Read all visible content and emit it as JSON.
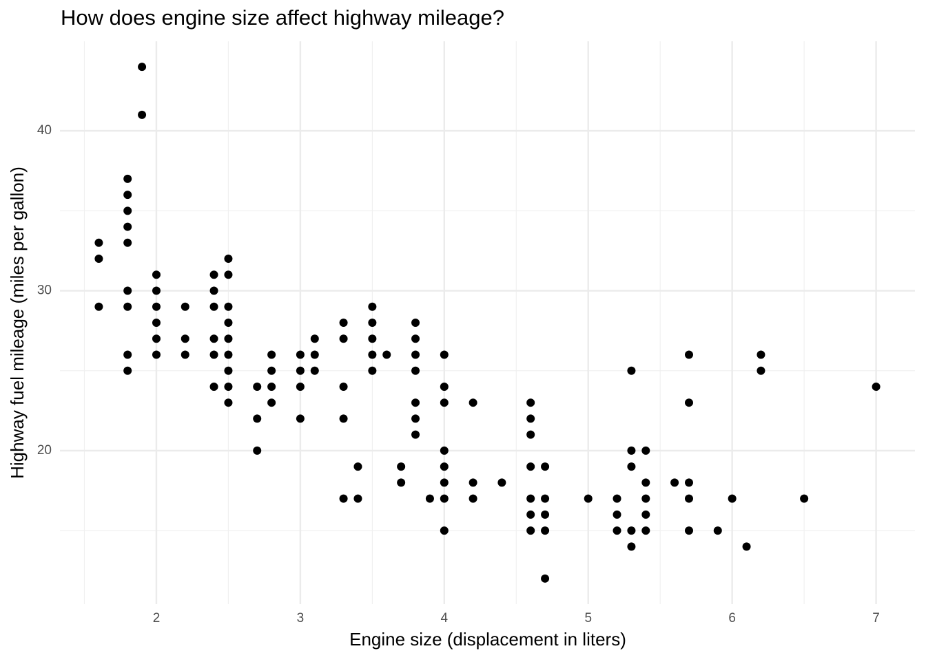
{
  "chart_data": {
    "type": "scatter",
    "title": "How does engine size affect highway mileage?",
    "x_label": "Engine size (displacement in liters)",
    "y_label": "Highway fuel mileage (miles per gallon)",
    "color": "#000000",
    "grid": true,
    "xlim": [
      1.33,
      7.27
    ],
    "ylim": [
      10.4,
      45.6
    ],
    "xticks": [
      2,
      3,
      4,
      5,
      6,
      7
    ],
    "yticks": [
      20,
      30,
      40
    ],
    "xminor": [
      1.5,
      2.5,
      3.5,
      4.5,
      5.5,
      6.5
    ],
    "yminor": [
      15,
      25,
      35
    ],
    "x": [
      1.6,
      1.6,
      1.6,
      1.8,
      1.8,
      1.8,
      1.8,
      1.8,
      1.8,
      1.8,
      1.8,
      1.8,
      1.9,
      1.9,
      2,
      2,
      2,
      2,
      2,
      2,
      2.2,
      2.2,
      2.2,
      2.4,
      2.4,
      2.4,
      2.4,
      2.4,
      2.4,
      2.5,
      2.5,
      2.5,
      2.5,
      2.5,
      2.5,
      2.5,
      2.5,
      2.5,
      2.7,
      2.7,
      2.7,
      2.8,
      2.8,
      2.8,
      2.8,
      3,
      3,
      3,
      3,
      3.1,
      3.1,
      3.1,
      3.3,
      3.3,
      3.3,
      3.3,
      3.3,
      3.4,
      3.4,
      3.5,
      3.5,
      3.5,
      3.5,
      3.5,
      3.6,
      3.7,
      3.7,
      3.8,
      3.8,
      3.8,
      3.8,
      3.8,
      3.8,
      3.8,
      3.9,
      4,
      4,
      4,
      4,
      4,
      4,
      4,
      4,
      4.2,
      4.2,
      4.2,
      4.4,
      4.6,
      4.6,
      4.6,
      4.6,
      4.6,
      4.6,
      4.6,
      4.7,
      4.7,
      4.7,
      4.7,
      4.7,
      5,
      5.2,
      5.2,
      5.2,
      5.3,
      5.3,
      5.3,
      5.3,
      5.3,
      5.4,
      5.4,
      5.4,
      5.4,
      5.4,
      5.6,
      5.7,
      5.7,
      5.7,
      5.7,
      5.7,
      5.9,
      6,
      6.1,
      6.2,
      6.2,
      6.5,
      7
    ],
    "y": [
      33,
      32,
      29,
      37,
      36,
      35,
      34,
      33,
      30,
      29,
      26,
      25,
      44,
      41,
      31,
      30,
      29,
      28,
      27,
      26,
      29,
      27,
      26,
      31,
      30,
      29,
      27,
      26,
      24,
      32,
      31,
      29,
      28,
      27,
      26,
      25,
      24,
      23,
      24,
      22,
      20,
      26,
      25,
      24,
      23,
      26,
      25,
      24,
      22,
      27,
      26,
      25,
      28,
      27,
      24,
      22,
      17,
      19,
      17,
      29,
      28,
      27,
      26,
      25,
      26,
      19,
      18,
      28,
      27,
      26,
      25,
      23,
      22,
      21,
      17,
      26,
      24,
      23,
      20,
      19,
      18,
      17,
      15,
      23,
      18,
      17,
      18,
      23,
      22,
      21,
      19,
      17,
      16,
      15,
      19,
      17,
      16,
      15,
      12,
      17,
      17,
      16,
      15,
      25,
      20,
      19,
      15,
      14,
      20,
      18,
      17,
      16,
      15,
      18,
      26,
      23,
      18,
      17,
      15,
      15,
      17,
      14,
      26,
      25,
      17,
      24
    ]
  }
}
